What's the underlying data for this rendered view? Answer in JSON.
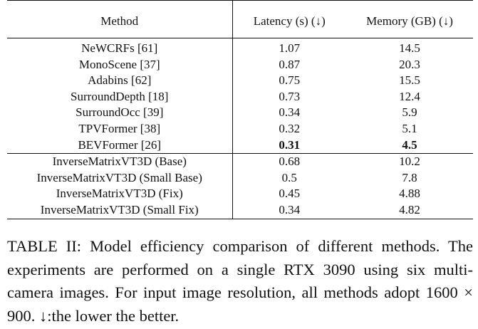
{
  "table": {
    "headers": {
      "method": "Method",
      "latency": "Latency (s) (↓)",
      "memory": "Memory (GB) (↓)"
    },
    "groups": [
      {
        "rows": [
          {
            "method": "NeWCRFs [61]",
            "latency": "1.07",
            "memory": "14.5"
          },
          {
            "method": "MonoScene [37]",
            "latency": "0.87",
            "memory": "20.3"
          },
          {
            "method": "Adabins [62]",
            "latency": "0.75",
            "memory": "15.5"
          },
          {
            "method": "SurroundDepth [18]",
            "latency": "0.73",
            "memory": "12.4"
          },
          {
            "method": "SurroundOcc [39]",
            "latency": "0.34",
            "memory": "5.9"
          },
          {
            "method": "TPVFormer [38]",
            "latency": "0.32",
            "memory": "5.1"
          },
          {
            "method": "BEVFormer [26]",
            "latency": "0.31",
            "memory": "4.5",
            "bold": true
          }
        ]
      },
      {
        "rows": [
          {
            "method": "InverseMatrixVT3D (Base)",
            "latency": "0.68",
            "memory": "10.2"
          },
          {
            "method": "InverseMatrixVT3D (Small Base)",
            "latency": "0.5",
            "memory": "7.8"
          },
          {
            "method": "InverseMatrixVT3D (Fix)",
            "latency": "0.45",
            "memory": "4.88"
          },
          {
            "method": "InverseMatrixVT3D (Small Fix)",
            "latency": "0.34",
            "memory": "4.82"
          }
        ]
      }
    ]
  },
  "caption": {
    "label": "TABLE II:",
    "text": "Model efficiency comparison of different methods. The experiments are performed on a single RTX 3090 using six multi-camera images. For input image resolution, all methods adopt 1600 × 900. ↓:the lower the better."
  }
}
